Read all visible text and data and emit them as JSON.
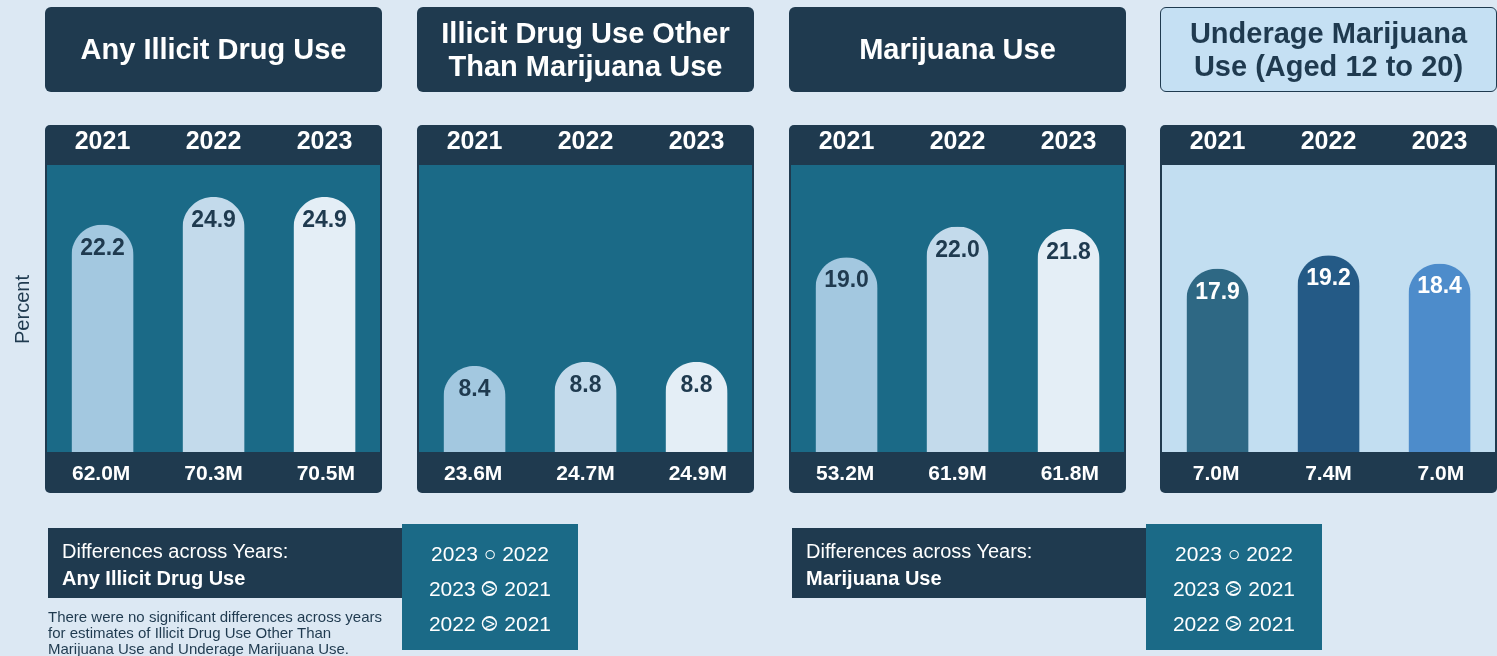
{
  "chart_data": [
    {
      "type": "bar",
      "title": "Any Illicit Drug Use",
      "ylabel": "Percent",
      "categories": [
        "2021",
        "2022",
        "2023"
      ],
      "values": [
        22.2,
        24.9,
        24.9
      ],
      "colors": [
        "#a3c8e0",
        "#c3daeb",
        "#e4eef6"
      ],
      "data_labels": true,
      "annotations": [
        "62.0M",
        "70.3M",
        "70.5M",
        "Differences across Years:",
        "Any Illicit Drug Use",
        "2023 ○ 2022",
        "2023 ⧁ 2021",
        "2022 ⧁ 2021",
        "There were no significant differences across years for estimates of Illicit Drug Use Other Than Marijuana Use and Underage Marijuana Use."
      ]
    },
    {
      "type": "bar",
      "title": "Illicit Drug Use Other Than Marijuana Use",
      "categories": [
        "2021",
        "2022",
        "2023"
      ],
      "values": [
        8.4,
        8.8,
        8.8
      ],
      "colors": [
        "#a3c8e0",
        "#c3daeb",
        "#e4eef6"
      ],
      "data_labels": true,
      "annotations": [
        "23.6M",
        "24.7M",
        "24.9M"
      ]
    },
    {
      "type": "bar",
      "title": "Marijuana Use",
      "categories": [
        "2021",
        "2022",
        "2023"
      ],
      "values": [
        19.0,
        22.0,
        21.8
      ],
      "colors": [
        "#a3c8e0",
        "#c3daeb",
        "#e4eef6"
      ],
      "value_labels": [
        "19.0",
        "22.0",
        "21.8"
      ],
      "annotations": [
        "53.2M",
        "61.9M",
        "61.8M",
        "Differences across Years:",
        "Marijuana Use",
        "2023 ○ 2022",
        "2023 ⧁ 2021",
        "2022 ⧁ 2021"
      ]
    },
    {
      "type": "bar",
      "title": "Underage Marijuana Use (Aged 12 to 20)",
      "categories": [
        "2021",
        "2022",
        "2023"
      ],
      "values": [
        17.9,
        19.2,
        18.4
      ],
      "colors": [
        "#2e6884",
        "#245a86",
        "#4d8ccb"
      ],
      "data_labels": true,
      "annotations": [
        "7.0M",
        "7.4M",
        "7.0M"
      ]
    }
  ]
}
